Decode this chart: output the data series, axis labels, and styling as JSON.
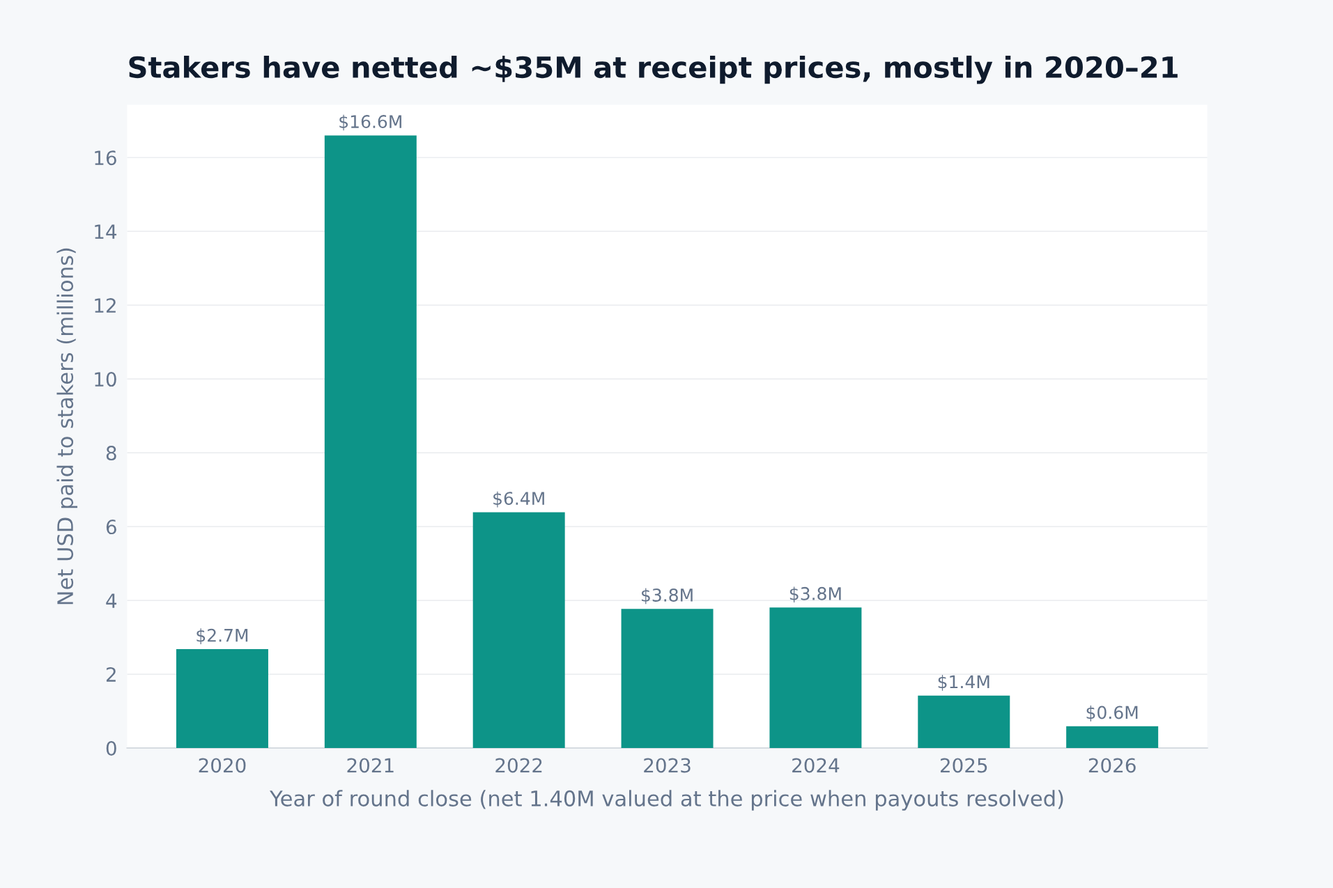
{
  "chart_data": {
    "type": "bar",
    "title": "Stakers have netted ~$35M at receipt prices, mostly in 2020–21",
    "xlabel": "Year of round close (net 1.40M valued at the price when payouts resolved)",
    "ylabel": "Net USD paid to stakers (millions)",
    "categories": [
      "2020",
      "2021",
      "2022",
      "2023",
      "2024",
      "2025",
      "2026"
    ],
    "values": [
      2.68,
      16.6,
      6.39,
      3.77,
      3.81,
      1.42,
      0.59
    ],
    "value_labels": [
      "$2.7M",
      "$16.6M",
      "$6.4M",
      "$3.8M",
      "$3.8M",
      "$1.4M",
      "$0.6M"
    ],
    "color": "#0d9488",
    "ylim": [
      0,
      17.43
    ],
    "yticks": [
      0,
      2,
      4,
      6,
      8,
      10,
      12,
      14,
      16
    ],
    "grid": "y"
  }
}
